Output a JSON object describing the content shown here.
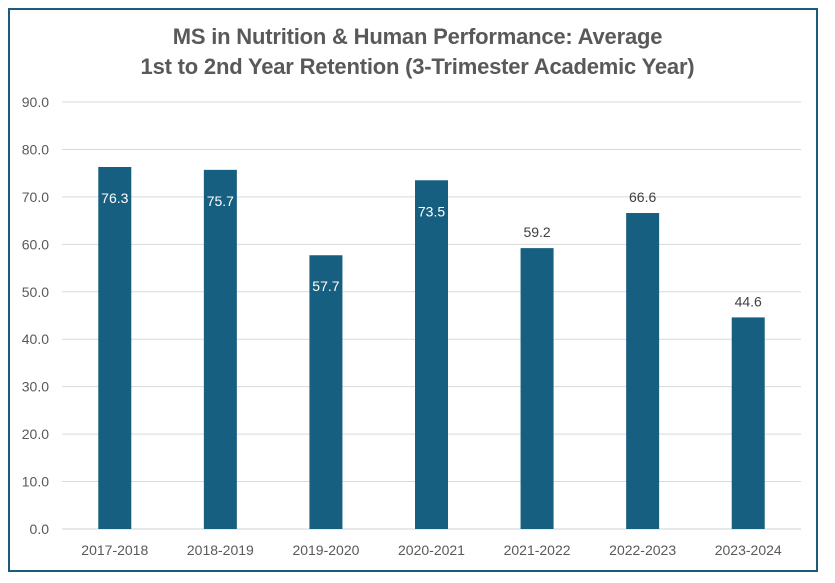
{
  "chart_data": {
    "type": "bar",
    "title_lines": [
      "MS in Nutrition & Human Performance: Average",
      "1st to 2nd Year Retention (3-Trimester Academic Year)"
    ],
    "title": "MS in Nutrition & Human Performance: Average 1st to 2nd Year Retention (3-Trimester Academic Year)",
    "xlabel": "",
    "ylabel": "",
    "categories": [
      "2017-2018",
      "2018-2019",
      "2019-2020",
      "2020-2021",
      "2021-2022",
      "2022-2023",
      "2023-2024"
    ],
    "values": [
      76.3,
      75.7,
      57.7,
      73.5,
      59.2,
      66.6,
      44.6
    ],
    "data_labels": [
      "76.3",
      "75.7",
      "57.7",
      "73.5",
      "59.2",
      "66.6",
      "44.6"
    ],
    "label_inside": [
      true,
      true,
      true,
      true,
      false,
      false,
      false
    ],
    "ylim": [
      0,
      90
    ],
    "yticks": [
      "0.0",
      "10.0",
      "20.0",
      "30.0",
      "40.0",
      "50.0",
      "60.0",
      "70.0",
      "80.0",
      "90.0"
    ],
    "grid": true,
    "legend": "none",
    "bar_color": "#175f80",
    "border_color": "#1a5c7a"
  }
}
